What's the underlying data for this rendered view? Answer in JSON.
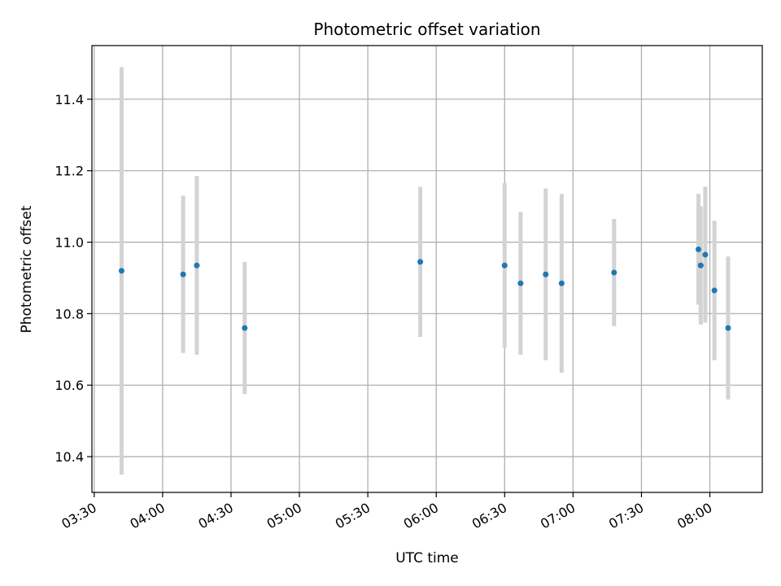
{
  "chart_data": {
    "type": "scatter",
    "title": "Photometric offset variation",
    "xlabel": "UTC time",
    "ylabel": "Photometric offset",
    "x_is_time": true,
    "xlim": [
      "03:29",
      "08:23"
    ],
    "ylim": [
      10.3,
      11.55
    ],
    "xticks": [
      "03:30",
      "04:00",
      "04:30",
      "05:00",
      "05:30",
      "06:00",
      "06:30",
      "07:00",
      "07:30",
      "08:00"
    ],
    "yticks": [
      "10.4",
      "10.6",
      "10.8",
      "11.0",
      "11.2",
      "11.4"
    ],
    "grid": true,
    "marker_color": "#1f77b4",
    "errorbar_color": "#d3d3d3",
    "points": [
      {
        "x": "03:42",
        "y": 10.92,
        "err": 0.57
      },
      {
        "x": "04:09",
        "y": 10.91,
        "err": 0.22
      },
      {
        "x": "04:15",
        "y": 10.935,
        "err": 0.25
      },
      {
        "x": "04:36",
        "y": 10.76,
        "err": 0.185
      },
      {
        "x": "05:53",
        "y": 10.945,
        "err": 0.21
      },
      {
        "x": "06:30",
        "y": 10.935,
        "err": 0.23
      },
      {
        "x": "06:37",
        "y": 10.885,
        "err": 0.2
      },
      {
        "x": "06:48",
        "y": 10.91,
        "err": 0.24
      },
      {
        "x": "06:55",
        "y": 10.885,
        "err": 0.25
      },
      {
        "x": "07:18",
        "y": 10.915,
        "err": 0.15
      },
      {
        "x": "07:55",
        "y": 10.98,
        "err": 0.155
      },
      {
        "x": "07:56",
        "y": 10.935,
        "err": 0.165
      },
      {
        "x": "07:58",
        "y": 10.965,
        "err": 0.19
      },
      {
        "x": "08:02",
        "y": 10.865,
        "err": 0.195
      },
      {
        "x": "08:08",
        "y": 10.76,
        "err": 0.2
      }
    ]
  }
}
